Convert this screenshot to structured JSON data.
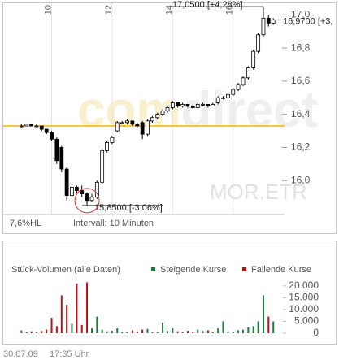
{
  "chart_data": [
    {
      "type": "candlestick",
      "x": [
        9.0,
        9.17,
        9.33,
        9.5,
        9.67,
        9.83,
        10.0,
        10.17,
        10.33,
        10.5,
        10.67,
        10.83,
        11.0,
        11.17,
        11.33,
        11.5,
        11.67,
        11.83,
        12.0,
        12.17,
        12.33,
        12.5,
        12.67,
        12.83,
        13.0,
        13.17,
        13.33,
        13.5,
        13.67,
        13.83,
        14.0,
        14.17,
        14.33,
        14.5,
        14.67,
        14.83,
        15.0,
        15.17,
        15.33,
        15.5,
        15.67,
        15.83,
        16.0,
        16.17,
        16.33,
        16.5,
        16.67,
        16.83,
        17.0,
        17.17,
        17.33
      ],
      "open": [
        16.33,
        16.33,
        16.34,
        16.33,
        16.33,
        16.31,
        16.29,
        16.25,
        16.2,
        16.07,
        15.91,
        15.96,
        15.94,
        15.92,
        15.88,
        15.9,
        15.99,
        16.18,
        16.23,
        16.3,
        16.35,
        16.35,
        16.36,
        16.34,
        16.35,
        16.28,
        16.36,
        16.38,
        16.4,
        16.42,
        16.44,
        16.47,
        16.45,
        16.46,
        16.45,
        16.44,
        16.46,
        16.46,
        16.45,
        16.47,
        16.5,
        16.5,
        16.52,
        16.55,
        16.58,
        16.62,
        16.68,
        16.78,
        16.88,
        16.98,
        16.95
      ],
      "high": [
        16.34,
        16.34,
        16.34,
        16.34,
        16.33,
        16.31,
        16.3,
        16.26,
        16.21,
        16.08,
        15.98,
        15.97,
        15.97,
        15.93,
        15.92,
        16.0,
        16.19,
        16.24,
        16.27,
        16.36,
        16.36,
        16.37,
        16.36,
        16.35,
        16.36,
        16.37,
        16.39,
        16.41,
        16.43,
        16.45,
        16.48,
        16.47,
        16.47,
        16.46,
        16.46,
        16.47,
        16.47,
        16.46,
        16.47,
        16.51,
        16.51,
        16.53,
        16.56,
        16.59,
        16.63,
        16.69,
        16.79,
        16.89,
        17.05,
        17.0,
        16.98
      ],
      "low": [
        16.32,
        16.33,
        16.33,
        16.32,
        16.3,
        16.28,
        16.24,
        16.1,
        16.05,
        15.88,
        15.9,
        15.92,
        15.9,
        15.85,
        15.87,
        15.89,
        15.98,
        16.17,
        16.22,
        16.29,
        16.34,
        16.34,
        16.33,
        16.32,
        16.25,
        16.27,
        16.35,
        16.37,
        16.39,
        16.41,
        16.43,
        16.44,
        16.44,
        16.44,
        16.43,
        16.44,
        16.45,
        16.44,
        16.45,
        16.46,
        16.49,
        16.49,
        16.51,
        16.54,
        16.57,
        16.61,
        16.67,
        16.77,
        16.87,
        16.93,
        16.94
      ],
      "close": [
        16.33,
        16.34,
        16.33,
        16.33,
        16.31,
        16.29,
        16.25,
        16.12,
        16.07,
        15.91,
        15.96,
        15.94,
        15.92,
        15.88,
        15.9,
        15.99,
        16.18,
        16.23,
        16.26,
        16.35,
        16.35,
        16.36,
        16.34,
        16.33,
        16.28,
        16.36,
        16.38,
        16.4,
        16.42,
        16.44,
        16.47,
        16.45,
        16.46,
        16.45,
        16.44,
        16.46,
        16.46,
        16.45,
        16.46,
        16.5,
        16.5,
        16.52,
        16.55,
        16.58,
        16.62,
        16.68,
        16.78,
        16.88,
        16.98,
        16.95,
        16.97
      ],
      "color": "#000000",
      "xlim": [
        8.4,
        17.7
      ],
      "xticks": [
        10,
        12,
        14,
        16
      ],
      "ylim": [
        15.82,
        17.07
      ],
      "yticks": [
        {
          "value": 16.0,
          "label": "16,0"
        },
        {
          "value": 16.2,
          "label": "16,2"
        },
        {
          "value": 16.4,
          "label": "16,4"
        },
        {
          "value": 16.6,
          "label": "16,6"
        },
        {
          "value": 16.8,
          "label": "16,8"
        },
        {
          "value": 17.0,
          "label": "17,0"
        }
      ],
      "grid": true,
      "reference_value": 16.33,
      "reference_color": "#f5b800",
      "annotations": [
        {
          "text": "17,0500 [+4,28%]",
          "value": 17.05
        },
        {
          "text": "16,9700 [+3,",
          "value": 16.97
        },
        {
          "text": "15,8500 [-3,06%]",
          "value": 15.85
        }
      ],
      "watermark": [
        "com",
        "direct"
      ],
      "symbol": "MOR.ETR",
      "range_label": "7,6%HL",
      "interval_label": "Intervall: 10 Minuten"
    },
    {
      "type": "bar",
      "title": "Stück-Volumen (alle Daten)",
      "x": [
        9.0,
        9.17,
        9.33,
        9.5,
        9.67,
        9.83,
        10.0,
        10.17,
        10.33,
        10.5,
        10.67,
        10.83,
        11.0,
        11.17,
        11.33,
        11.5,
        11.67,
        11.83,
        12.0,
        12.17,
        12.33,
        12.5,
        12.67,
        12.83,
        13.0,
        13.17,
        13.33,
        13.5,
        13.67,
        13.83,
        14.0,
        14.17,
        14.33,
        14.5,
        14.67,
        14.83,
        15.0,
        15.17,
        15.33,
        15.5,
        15.67,
        15.83,
        16.0,
        16.17,
        16.33,
        16.5,
        16.67,
        16.83,
        17.0,
        17.17,
        17.33
      ],
      "xlim": [
        8.4,
        17.7
      ],
      "ylim": [
        0,
        22000
      ],
      "yticks": [
        0,
        {
          "value": 5000,
          "label": "5.000"
        },
        {
          "value": 10000,
          "label": "10.000"
        },
        {
          "value": 15000,
          "label": "15.000"
        },
        {
          "value": 20000,
          "label": "20.000"
        }
      ],
      "series": [
        {
          "name": "Steigende Kurse",
          "color": "#1e7a3c",
          "values": [
            1200,
            400,
            null,
            300,
            null,
            null,
            null,
            null,
            null,
            null,
            4000,
            null,
            null,
            null,
            2000,
            7000,
            1500,
            800,
            1000,
            2000,
            600,
            500,
            null,
            null,
            null,
            1800,
            600,
            500,
            4500,
            900,
            2000,
            null,
            600,
            null,
            null,
            1500,
            900,
            null,
            600,
            2000,
            5000,
            800,
            700,
            1200,
            1500,
            2500,
            3000,
            5000,
            16000,
            null,
            5000
          ]
        },
        {
          "name": "Fallende Kurse",
          "color": "#b5121b",
          "values": [
            null,
            null,
            800,
            null,
            900,
            1500,
            6500,
            3000,
            16000,
            12000,
            null,
            21000,
            3500,
            21500,
            null,
            null,
            null,
            null,
            null,
            null,
            null,
            null,
            1200,
            700,
            1500,
            null,
            null,
            null,
            null,
            null,
            null,
            800,
            null,
            1000,
            700,
            null,
            null,
            1200,
            null,
            null,
            null,
            null,
            null,
            null,
            null,
            null,
            null,
            null,
            null,
            7000,
            null
          ]
        }
      ],
      "footer": [
        "30.07.09",
        "17:35 Uhr"
      ]
    }
  ]
}
